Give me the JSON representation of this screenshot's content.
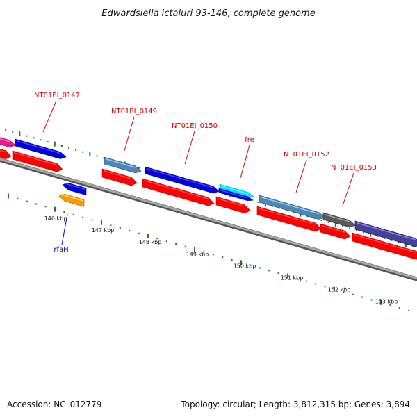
{
  "title": "Edwardsiella ictaluri 93-146, complete genome",
  "footer": {
    "accession": "Accession: NC_012779",
    "summary": "Topology: circular; Length: 3,812,315 bp; Genes: 3,894"
  },
  "colors": {
    "backbone": "#8a8a8a",
    "tick": "#1f7a1f",
    "upper_label": "#d40000",
    "lower_label": "#0000cc",
    "cds": "#ff0000",
    "gene_blue": "#0000dd",
    "gene_steel": "#4f86b8",
    "gene_cyan": "#00e5ff",
    "gene_orange": "#ff9900",
    "gene_grey": "#5a5a5a",
    "gene_slate": "#45409a",
    "gene_pink": "#e0208a"
  },
  "scale_labels": [
    "146 kbp",
    "147 kbp",
    "148 kbp",
    "149 kbp",
    "150 kbp",
    "151 kbp",
    "152 kbp",
    "153 kbp"
  ],
  "upper_labels": [
    "NT01EI_0147",
    "NT01EI_0149",
    "NT01EI_0150",
    "fre",
    "NT01EI_0152",
    "NT01EI_0153"
  ],
  "lower_labels": [
    "rfaH"
  ]
}
